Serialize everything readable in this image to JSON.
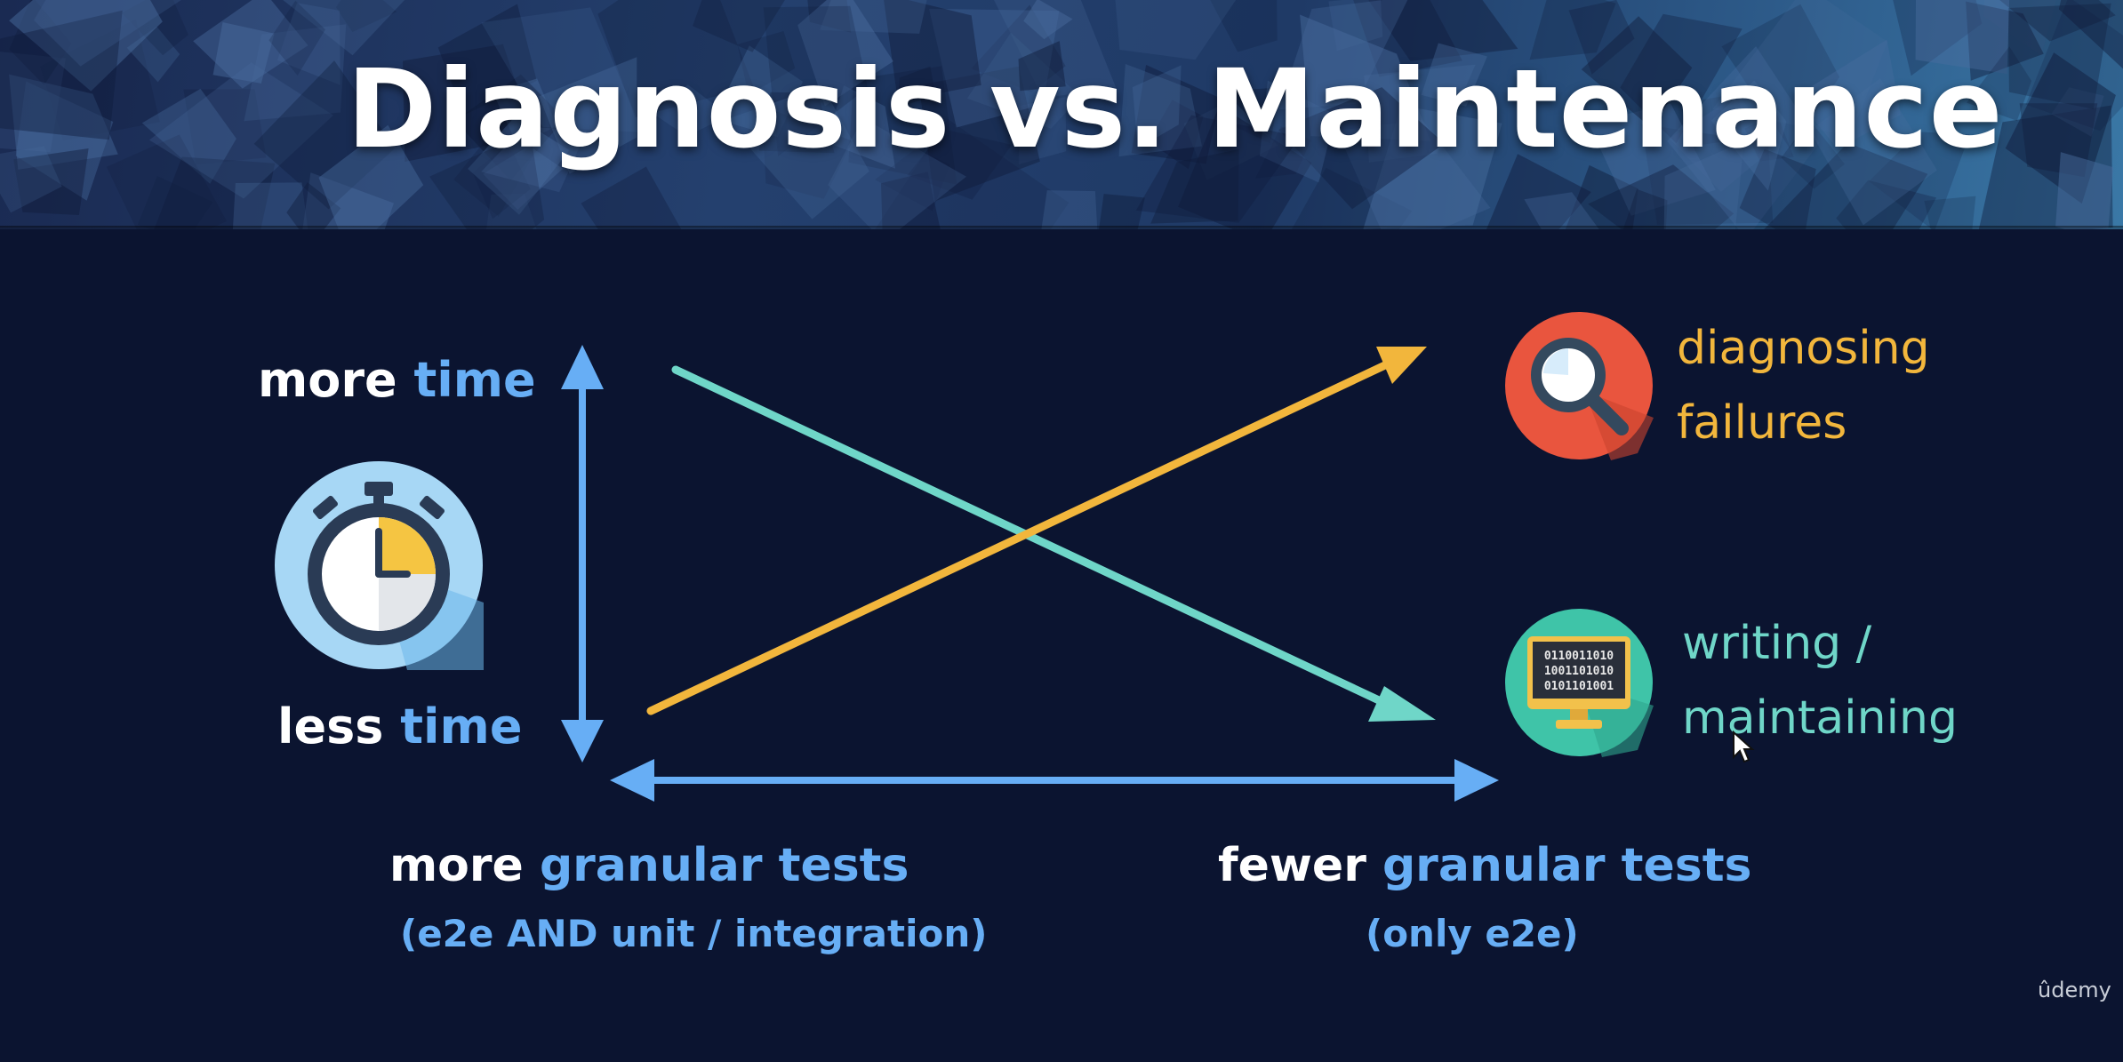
{
  "title": "Diagnosis vs. Maintenance",
  "y_axis": {
    "top": {
      "word": "more",
      "unit": "time"
    },
    "bottom": {
      "word": "less",
      "unit": "time"
    }
  },
  "x_axis": {
    "left": {
      "word": "more",
      "rest": "granular tests",
      "sub": "(e2e AND unit / integration)"
    },
    "right": {
      "word": "fewer",
      "rest": "granular tests",
      "sub": "(only e2e)"
    }
  },
  "series": [
    {
      "line1": "diagnosing",
      "line2": "failures",
      "color": "#f2b63c",
      "icon": "magnifier-icon",
      "trend": "increasing"
    },
    {
      "line1": "writing /",
      "line2": "maintaining",
      "color": "#6fd6c8",
      "icon": "computer-monitor-icon",
      "trend": "decreasing"
    }
  ],
  "monitor_screen_text": [
    "0110011010",
    "1001101010",
    "0101101001"
  ],
  "icons": {
    "clock": "stopwatch-icon",
    "cursor": "mouse-cursor-icon"
  },
  "brand": {
    "logo_text": "ûdemy"
  },
  "colors": {
    "background": "#0b1430",
    "axis": "#67aef5",
    "highlight": "#67aef5",
    "diagnosing": "#f2b63c",
    "maintaining": "#6fd6c8"
  }
}
